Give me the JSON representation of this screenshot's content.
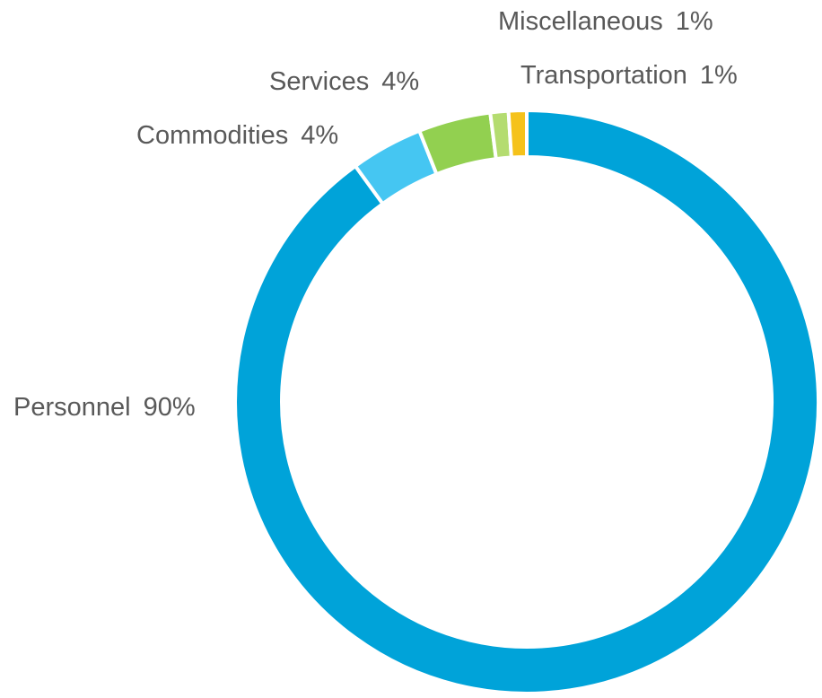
{
  "chart_data": {
    "type": "donut",
    "categories": [
      "Personnel",
      "Commodities",
      "Services",
      "Miscellaneous",
      "Transportation"
    ],
    "values": [
      90,
      4,
      4,
      1,
      1
    ],
    "value_labels": [
      "90%",
      "4%",
      "4%",
      "1%",
      "1%"
    ],
    "colors": [
      "#00a3d9",
      "#45c6f2",
      "#92d050",
      "#b4dc70",
      "#f5c21b"
    ]
  }
}
